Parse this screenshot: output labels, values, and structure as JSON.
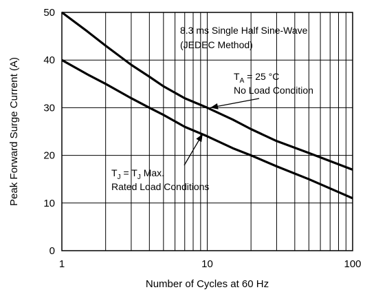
{
  "chart_data": {
    "type": "line",
    "title": "",
    "xlabel": "Number of Cycles at 60 Hz",
    "ylabel": "Peak Forward Surge Current (A)",
    "xscale": "log",
    "xlim": [
      1,
      100
    ],
    "ylim": [
      0,
      50
    ],
    "x_ticks": [
      1,
      10,
      100
    ],
    "x_tick_labels": [
      "1",
      "10",
      "100"
    ],
    "y_ticks": [
      0,
      10,
      20,
      30,
      40,
      50
    ],
    "y_tick_labels": [
      "0",
      "10",
      "20",
      "30",
      "40",
      "50"
    ],
    "grid": true,
    "series": [
      {
        "x": [
          1,
          1.5,
          2,
          3,
          4,
          5,
          7,
          10,
          15,
          20,
          30,
          50,
          100
        ],
        "values": [
          50,
          46,
          43,
          39,
          36.5,
          34.5,
          32,
          30,
          27.5,
          25.5,
          23,
          20.5,
          17
        ],
        "color": "#000000"
      },
      {
        "x": [
          1,
          1.5,
          2,
          3,
          4,
          5,
          7,
          10,
          15,
          20,
          30,
          50,
          100
        ],
        "values": [
          40,
          37,
          35,
          32,
          30,
          28.5,
          26,
          24,
          21.5,
          20,
          17.7,
          15,
          11
        ],
        "color": "#000000"
      }
    ],
    "annotations": {
      "method_line1": "8.3 ms Single Half Sine-Wave",
      "method_line2": "(JEDEC Method)",
      "upper_label": {
        "line1_main": "T",
        "line1_sub": "A",
        "line1_rest": " = 25 °C",
        "line2": "No Load Condition",
        "arrow_to": [
          10.5,
          30
        ]
      },
      "lower_label": {
        "line1_main": "T",
        "line1_sub": "J",
        "line1_mid": " = T",
        "line1_sub2": "J",
        "line1_rest": " Max.",
        "line2": "Rated Load Conditions",
        "arrow_to": [
          9.3,
          24.5
        ]
      }
    }
  }
}
